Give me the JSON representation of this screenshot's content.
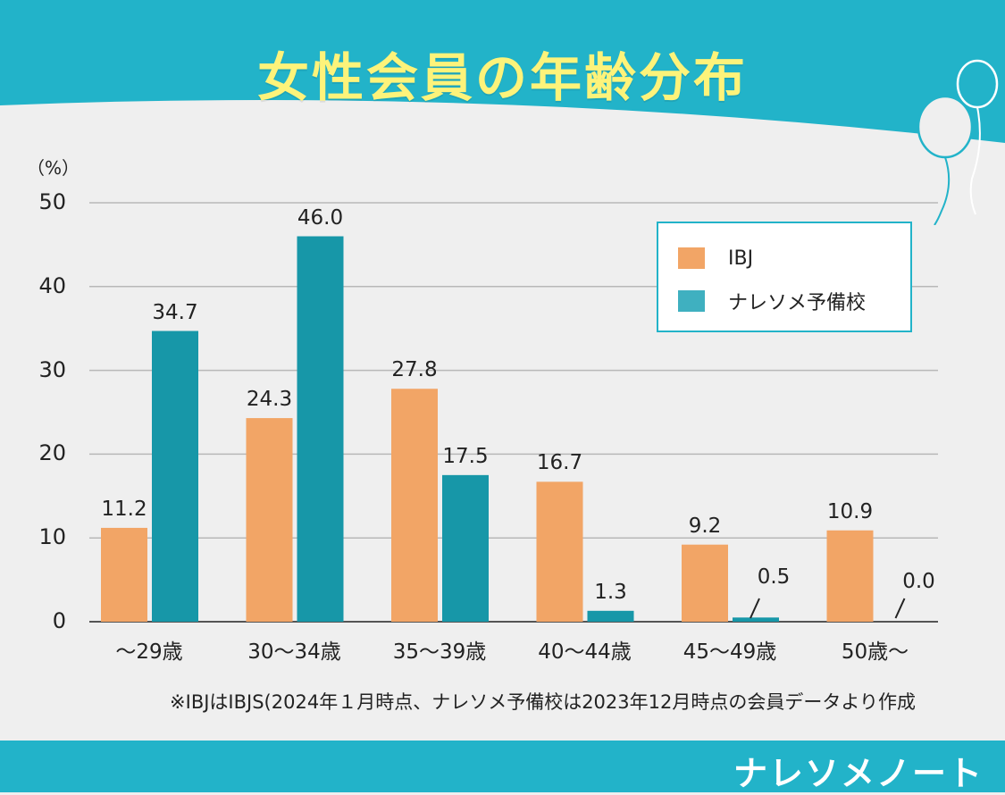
{
  "header": {
    "title": "女性会員の年齢分布"
  },
  "colors": {
    "header_bg": "#22b3c9",
    "ibj": "#f2a566",
    "nareso": "#1797a8",
    "title_text": "#fdf37a"
  },
  "chart_data": {
    "type": "bar",
    "title": "女性会員の年齢分布",
    "ylabel": "（%）",
    "xlabel": "",
    "ylim": [
      0,
      50
    ],
    "yticks": [
      "0",
      "10",
      "20",
      "30",
      "40",
      "50"
    ],
    "categories": [
      "～29歳",
      "30～34歳",
      "35～39歳",
      "40～44歳",
      "45～49歳",
      "50歳～"
    ],
    "series": [
      {
        "name": "IBJ",
        "values": [
          11.2,
          24.3,
          27.8,
          16.7,
          9.2,
          10.9
        ],
        "labels": [
          "11.2",
          "24.3",
          "27.8",
          "16.7",
          "9.2",
          "10.9"
        ]
      },
      {
        "name": "ナレソメ予備校",
        "values": [
          34.7,
          46.0,
          17.5,
          1.3,
          0.5,
          0.0
        ],
        "labels": [
          "34.7",
          "46.0",
          "17.5",
          "1.3",
          "0.5",
          "0.0"
        ]
      }
    ],
    "grid": true,
    "legend_position": "top-right"
  },
  "note": "※IBJはIBJS(2024年１月時点、ナレソメ予備校は2023年12月時点の会員データより作成",
  "footer": {
    "brand": "ナレソメノート"
  }
}
